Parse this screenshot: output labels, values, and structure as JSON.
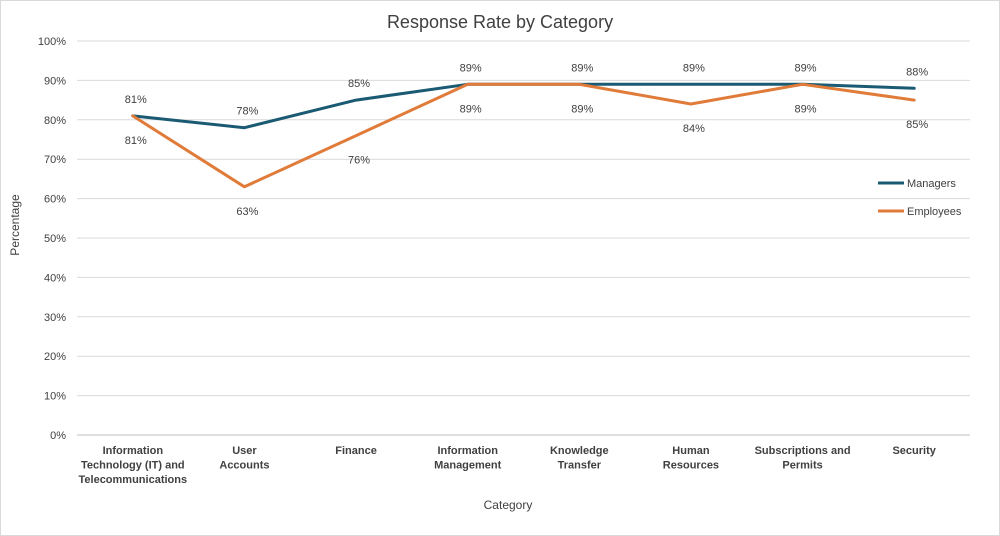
{
  "chart_data": {
    "type": "line",
    "title": "Response Rate by Category",
    "xlabel": "Category",
    "ylabel": "Percentage",
    "ylim": [
      0,
      100
    ],
    "y_ticks": [
      "0%",
      "10%",
      "20%",
      "30%",
      "40%",
      "50%",
      "60%",
      "70%",
      "80%",
      "90%",
      "100%"
    ],
    "categories": [
      "Information Technology (IT) and Telecommunications",
      "User Accounts",
      "Finance",
      "Information Management",
      "Knowledge Transfer",
      "Human Resources",
      "Subscriptions and Permits",
      "Security"
    ],
    "category_lines": [
      [
        "Information",
        "Technology (IT) and",
        "Telecommunications"
      ],
      [
        "User",
        "Accounts"
      ],
      [
        "Finance"
      ],
      [
        "Information",
        "Management"
      ],
      [
        "Knowledge",
        "Transfer"
      ],
      [
        "Human",
        "Resources"
      ],
      [
        "Subscriptions and",
        "Permits"
      ],
      [
        "Security"
      ]
    ],
    "series": [
      {
        "name": "Managers",
        "color": "#1b5a73",
        "values": [
          81,
          78,
          85,
          89,
          89,
          89,
          89,
          88
        ],
        "labels": [
          "81%",
          "78%",
          "85%",
          "89%",
          "89%",
          "89%",
          "89%",
          "88%"
        ]
      },
      {
        "name": "Employees",
        "color": "#e07b39",
        "values": [
          81,
          63,
          76,
          89,
          89,
          84,
          89,
          85
        ],
        "labels": [
          "81%",
          "63%",
          "76%",
          "89%",
          "89%",
          "84%",
          "89%",
          "85%"
        ]
      }
    ],
    "grid": true,
    "legend_position": "right"
  }
}
